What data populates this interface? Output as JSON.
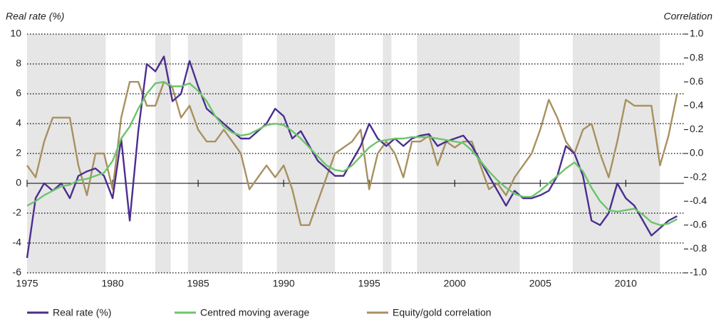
{
  "chart_data": {
    "type": "line",
    "y_label": "Real rate (%)",
    "y2_label": "Correlation",
    "x": [
      1975,
      1975.5,
      1976,
      1976.5,
      1977,
      1977.5,
      1978,
      1978.5,
      1979,
      1979.5,
      1980,
      1980.5,
      1981,
      1981.5,
      1982,
      1982.5,
      1983,
      1983.5,
      1984,
      1984.5,
      1985,
      1985.5,
      1986,
      1986.5,
      1987,
      1987.5,
      1988,
      1988.5,
      1989,
      1989.5,
      1990,
      1990.5,
      1991,
      1991.5,
      1992,
      1992.5,
      1993,
      1993.5,
      1994,
      1994.5,
      1995,
      1995.5,
      1996,
      1996.5,
      1997,
      1997.5,
      1998,
      1998.5,
      1999,
      1999.5,
      2000,
      2000.5,
      2001,
      2001.5,
      2002,
      2002.5,
      2003,
      2003.5,
      2004,
      2004.5,
      2005,
      2005.5,
      2006,
      2006.5,
      2007,
      2007.5,
      2008,
      2008.5,
      2009,
      2009.5,
      2010,
      2010.5,
      2011,
      2011.5,
      2012,
      2012.5,
      2013
    ],
    "series": [
      {
        "name": "Real rate (%)",
        "color": "#4b2e8f",
        "axis": "y",
        "values": [
          -5,
          -1,
          0,
          -0.5,
          0,
          -1,
          0.5,
          0.8,
          1,
          0.5,
          -1,
          3,
          -2.5,
          3.5,
          8,
          7.5,
          8.5,
          5.5,
          6,
          8.2,
          6.5,
          5,
          4.5,
          4,
          3.5,
          3,
          3,
          3.5,
          4,
          5,
          4.5,
          3,
          3.5,
          2.5,
          1.5,
          1,
          0.5,
          0.5,
          1.5,
          2.5,
          4,
          3,
          2.5,
          3,
          2.5,
          3,
          3.2,
          3.3,
          2.5,
          2.8,
          3,
          3.2,
          2.5,
          1.5,
          0.5,
          -0.5,
          -1.5,
          -0.5,
          -1,
          -1,
          -0.8,
          -0.5,
          0.5,
          2.5,
          2,
          0.5,
          -2.5,
          -2.8,
          -2,
          0,
          -1,
          -1.5,
          -2.5,
          -3.5,
          -3,
          -2.5,
          -2.2
        ]
      },
      {
        "name": "Centred moving average",
        "color": "#6cc56a",
        "axis": "y",
        "values": [
          -1.5,
          -1.2,
          -0.8,
          -0.5,
          -0.2,
          -0.1,
          0.2,
          0.3,
          0.5,
          0.7,
          1.5,
          3,
          3.8,
          5,
          6,
          6.7,
          6.8,
          6.5,
          6.5,
          6.7,
          6.2,
          5.5,
          4.5,
          3.8,
          3.4,
          3.2,
          3.3,
          3.6,
          3.9,
          4,
          3.9,
          3.5,
          3,
          2.4,
          1.8,
          1.2,
          0.9,
          0.8,
          1.2,
          1.8,
          2.4,
          2.8,
          2.9,
          3,
          3,
          3.1,
          3.1,
          3.1,
          3,
          2.9,
          2.8,
          2.7,
          2.2,
          1.5,
          0.8,
          0.2,
          -0.3,
          -0.7,
          -0.9,
          -0.9,
          -0.5,
          0,
          0.5,
          1,
          1.4,
          0.8,
          -0.3,
          -1.2,
          -1.8,
          -1.9,
          -1.8,
          -1.7,
          -2.1,
          -2.6,
          -2.8,
          -2.7,
          -2.4
        ]
      },
      {
        "name": "Equity/gold correlation",
        "color": "#a89060",
        "axis": "y2",
        "values": [
          -0.1,
          -0.2,
          0.1,
          0.3,
          0.3,
          0.3,
          -0.1,
          -0.35,
          0,
          0,
          -0.3,
          0.3,
          0.6,
          0.6,
          0.4,
          0.4,
          0.6,
          0.55,
          0.3,
          0.4,
          0.2,
          0.1,
          0.1,
          0.2,
          0.1,
          0,
          -0.3,
          -0.2,
          -0.1,
          -0.2,
          -0.1,
          -0.3,
          -0.6,
          -0.6,
          -0.4,
          -0.2,
          0,
          0.05,
          0.1,
          0.2,
          -0.3,
          0,
          0.1,
          0,
          -0.2,
          0.1,
          0.1,
          0.15,
          -0.1,
          0.1,
          0.05,
          0.1,
          0.1,
          -0.1,
          -0.3,
          -0.25,
          -0.35,
          -0.2,
          -0.1,
          0,
          0.2,
          0.45,
          0.3,
          0.1,
          0,
          0.2,
          0.25,
          0,
          -0.2,
          0.1,
          0.45,
          0.4,
          0.4,
          0.4,
          -0.1,
          0.15,
          0.5
        ]
      }
    ],
    "shaded_periods": [
      [
        1975,
        1979.6
      ],
      [
        1982.5,
        1983.4
      ],
      [
        1984.4,
        1987.6
      ],
      [
        1989.6,
        1993
      ],
      [
        1995.8,
        1996.3
      ],
      [
        1997.8,
        2003.8
      ],
      [
        2006.9,
        2012
      ]
    ],
    "shade_color": "#e6e6e6",
    "xlim": [
      1975,
      2013.4
    ],
    "xticks": [
      1975,
      1980,
      1985,
      1990,
      1995,
      2000,
      2005,
      2010
    ],
    "ylim": [
      -6,
      10
    ],
    "yticks": [
      -6,
      -4,
      -2,
      0,
      2,
      4,
      6,
      8,
      10
    ],
    "y2lim": [
      -1,
      1
    ],
    "y2ticks": [
      {
        "value": -1,
        "label": "-1.0"
      },
      {
        "value": -0.8,
        "label": "-0.8"
      },
      {
        "value": -0.6,
        "label": "-0.6"
      },
      {
        "value": -0.4,
        "label": "-0.4"
      },
      {
        "value": -0.2,
        "label": "-0.2"
      },
      {
        "value": 0,
        "label": "0.0"
      },
      {
        "value": 0.2,
        "label": "0.2"
      },
      {
        "value": 0.4,
        "label": "0.4"
      },
      {
        "value": 0.6,
        "label": "0.6"
      },
      {
        "value": 0.8,
        "label": "0.8"
      },
      {
        "value": 1,
        "label": "1.0"
      }
    ],
    "grid": true,
    "legend": "bottom"
  }
}
